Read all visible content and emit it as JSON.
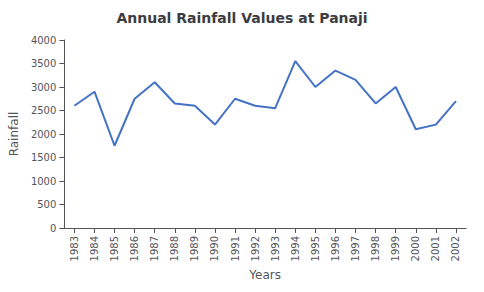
{
  "chart_data": {
    "type": "line",
    "title": "Annual Rainfall Values at Panaji",
    "xlabel": "Years",
    "ylabel": "Rainfall",
    "x": [
      1983,
      1984,
      1985,
      1986,
      1987,
      1988,
      1989,
      1990,
      1991,
      1992,
      1993,
      1994,
      1995,
      1996,
      1997,
      1998,
      1999,
      2000,
      2001,
      2002
    ],
    "values": [
      2600,
      2900,
      1750,
      2750,
      3100,
      2650,
      2600,
      2200,
      2750,
      2600,
      2550,
      3550,
      3000,
      3350,
      3150,
      2650,
      3000,
      2100,
      2200,
      2700
    ],
    "color": "#4472C4",
    "xlim": [
      1982.5,
      2002.5
    ],
    "xticks": [
      1983,
      1984,
      1985,
      1986,
      1987,
      1988,
      1989,
      1990,
      1991,
      1992,
      1993,
      1994,
      1995,
      1996,
      1997,
      1998,
      1999,
      2000,
      2001,
      2002
    ],
    "ylim": [
      0,
      4000
    ],
    "yticks": [
      0,
      500,
      1000,
      1500,
      2000,
      2500,
      3000,
      3500,
      4000
    ],
    "grid": false
  }
}
